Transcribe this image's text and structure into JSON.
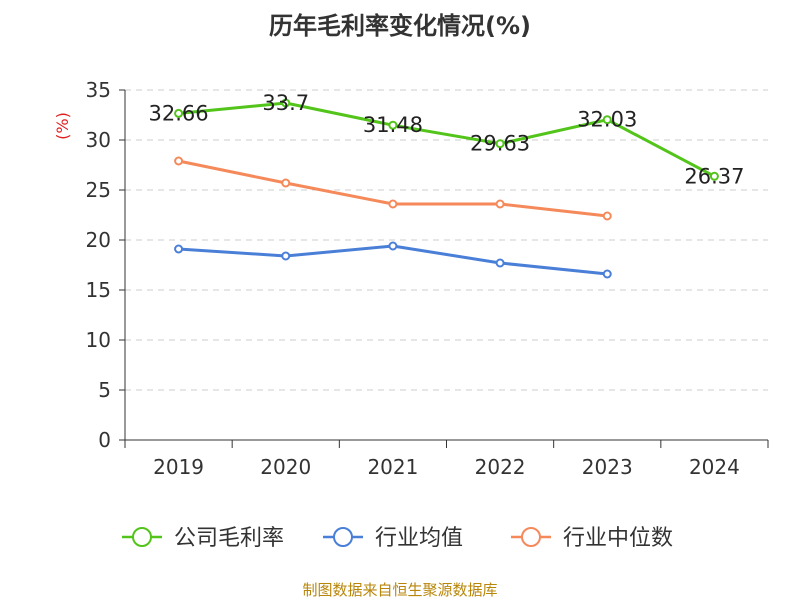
{
  "chart_data": {
    "type": "line",
    "title": "历年毛利率变化情况(%)",
    "ylabel": "(%)",
    "categories": [
      "2019",
      "2020",
      "2021",
      "2022",
      "2023",
      "2024"
    ],
    "ylim": [
      0,
      35
    ],
    "yticks": [
      0,
      5,
      10,
      15,
      20,
      25,
      30,
      35
    ],
    "grid": true,
    "legend_position": "bottom",
    "series": [
      {
        "name": "公司毛利率",
        "color": "#52c41a",
        "values": [
          32.66,
          33.7,
          31.48,
          29.63,
          32.03,
          26.37
        ],
        "labels": [
          "32.66",
          "33.7",
          "31.48",
          "29.63",
          "32.03",
          "26.37"
        ]
      },
      {
        "name": "行业均值",
        "color": "#4a7fd8",
        "values": [
          19.1,
          18.4,
          19.4,
          17.7,
          16.6,
          null
        ],
        "labels": []
      },
      {
        "name": "行业中位数",
        "color": "#f5895a",
        "values": [
          27.9,
          25.7,
          23.6,
          23.6,
          22.4,
          null
        ],
        "labels": []
      }
    ]
  },
  "footer": {
    "source": "制图数据来自恒生聚源数据库"
  }
}
